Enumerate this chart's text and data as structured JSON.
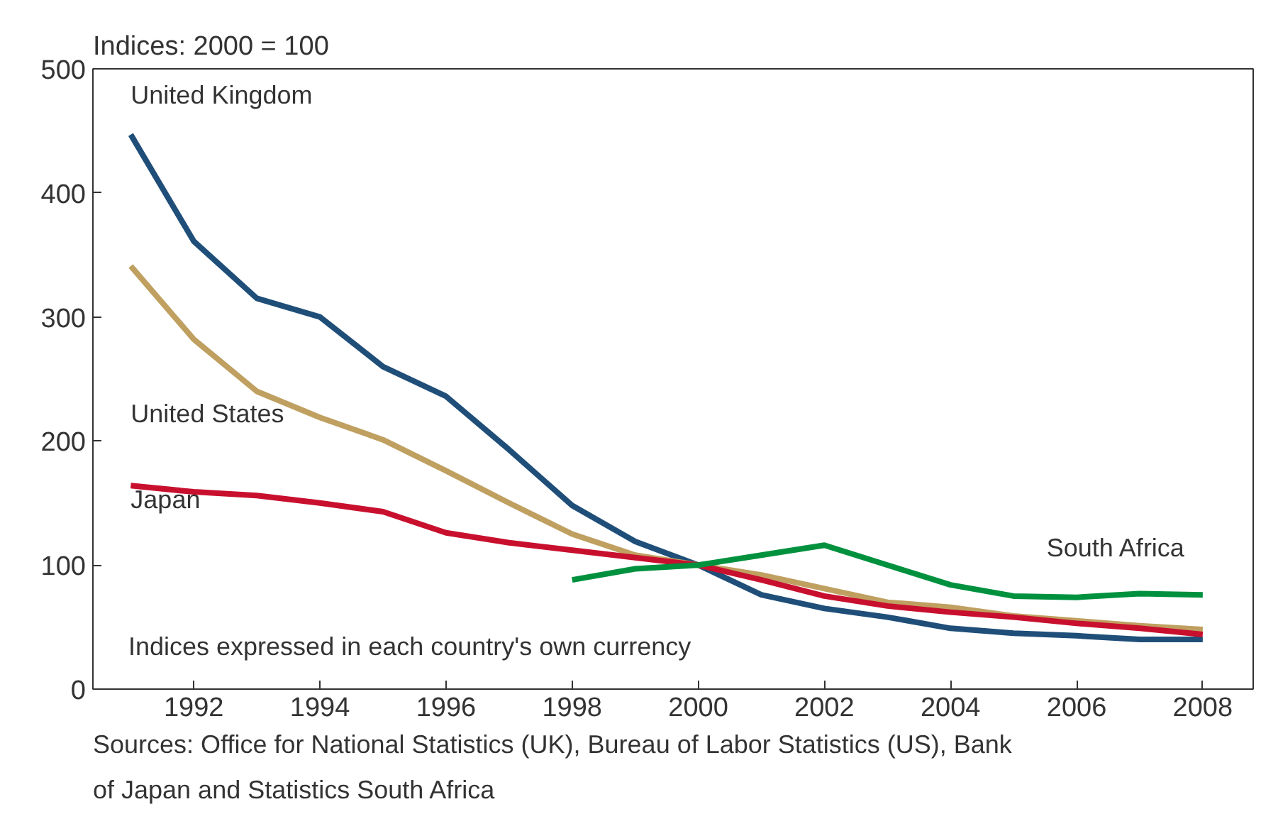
{
  "chart_data": {
    "type": "line",
    "ylabel": "Indices: 2000 = 100",
    "x": [
      1991,
      1992,
      1993,
      1994,
      1995,
      1996,
      1997,
      1998,
      1999,
      2000,
      2001,
      2002,
      2003,
      2004,
      2005,
      2006,
      2007,
      2008
    ],
    "series": [
      {
        "name": "United Kingdom",
        "color": "#1f4e79",
        "values": [
          447,
          361,
          315,
          300,
          260,
          236,
          193,
          148,
          119,
          100,
          76,
          65,
          58,
          49,
          45,
          43,
          40,
          40
        ]
      },
      {
        "name": "United States",
        "color": "#bfa060",
        "values": [
          341,
          282,
          240,
          219,
          201,
          176,
          150,
          125,
          108,
          100,
          92,
          81,
          70,
          66,
          59,
          55,
          51,
          48
        ]
      },
      {
        "name": "Japan",
        "color": "#c8102e",
        "values": [
          164,
          159,
          156,
          150,
          143,
          126,
          118,
          112,
          106,
          100,
          88,
          75,
          67,
          62,
          58,
          53,
          49,
          44
        ]
      },
      {
        "name": "South Africa",
        "color": "#00913f",
        "x": [
          1998,
          1999,
          2000,
          2001,
          2002,
          2003,
          2004,
          2005,
          2006,
          2007,
          2008
        ],
        "values": [
          88,
          97,
          100,
          108,
          116,
          100,
          84,
          75,
          74,
          77,
          76
        ]
      }
    ],
    "xlim": [
      1990.4,
      2008.8
    ],
    "ylim": [
      0,
      500
    ],
    "xticks": [
      1992,
      1994,
      1996,
      1998,
      2000,
      2002,
      2004,
      2006,
      2008
    ],
    "yticks": [
      0,
      100,
      200,
      300,
      400,
      500
    ],
    "grid": false,
    "marker": "none",
    "line_style": "solid",
    "annotations": [
      "Indices expressed in each country's own currency",
      "Sources: Office for National Statistics (UK), Bureau of Labor Statistics (US), Bank of Japan and Statistics South Africa"
    ]
  }
}
